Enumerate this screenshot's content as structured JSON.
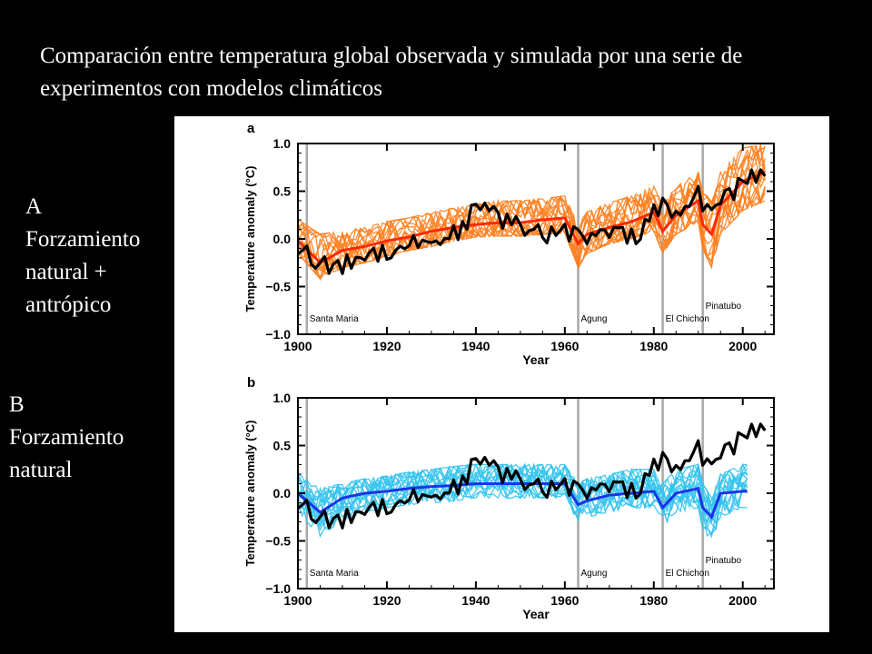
{
  "slide": {
    "title": "Comparación entre temperatura global observada y simulada por una serie de experimentos con modelos climáticos",
    "label_a": {
      "letter": "A",
      "text": "Forzamiento natural + antrópico"
    },
    "label_b": {
      "letter": "B",
      "text": "Forzamiento natural"
    }
  },
  "colors": {
    "observed": "#000000",
    "panel_a_members": "#ff7f1e",
    "panel_a_mean": "#ff2a00",
    "panel_b_members": "#33c3ee",
    "panel_b_mean": "#1a35e6",
    "eruption_lines": "#a9a9a9"
  },
  "chart_data": [
    {
      "type": "line",
      "panel_letter": "a",
      "xlabel": "Year",
      "ylabel": "Temperature anomaly (°C)",
      "xlim": [
        1900,
        2007
      ],
      "ylim": [
        -1.0,
        1.0
      ],
      "xticks": [
        "1900",
        "1920",
        "1940",
        "1960",
        "1980",
        "2000"
      ],
      "yticks": [
        "1.0",
        "0.5",
        "0.0",
        "−0.5",
        "−1.0"
      ],
      "eruptions": [
        {
          "year": 1902,
          "label": "Santa Maria"
        },
        {
          "year": 1963,
          "label": "Agung"
        },
        {
          "year": 1982,
          "label": "El Chichon"
        },
        {
          "year": 1991,
          "label": "Pinatubo"
        }
      ],
      "x": [
        1900,
        1905,
        1910,
        1915,
        1920,
        1925,
        1930,
        1935,
        1940,
        1945,
        1950,
        1955,
        1960,
        1963,
        1965,
        1970,
        1975,
        1980,
        1982,
        1985,
        1990,
        1991,
        1993,
        1995,
        2000,
        2005
      ],
      "series": [
        {
          "role": "members_low",
          "values": [
            -0.15,
            -0.42,
            -0.3,
            -0.25,
            -0.18,
            -0.12,
            -0.08,
            -0.02,
            0.02,
            0.03,
            0.03,
            0.05,
            0.06,
            -0.3,
            -0.15,
            -0.05,
            0.0,
            0.08,
            -0.15,
            0.05,
            0.18,
            -0.1,
            -0.3,
            0.05,
            0.3,
            0.4
          ]
        },
        {
          "role": "members_high",
          "values": [
            0.2,
            0.05,
            0.08,
            0.12,
            0.18,
            0.22,
            0.28,
            0.32,
            0.36,
            0.4,
            0.4,
            0.42,
            0.45,
            0.15,
            0.28,
            0.38,
            0.45,
            0.55,
            0.35,
            0.55,
            0.7,
            0.5,
            0.4,
            0.7,
            0.95,
            1.0
          ]
        },
        {
          "role": "ensemble_mean",
          "values": [
            -0.02,
            -0.25,
            -0.12,
            -0.08,
            -0.02,
            0.02,
            0.08,
            0.12,
            0.15,
            0.17,
            0.17,
            0.2,
            0.22,
            -0.05,
            0.05,
            0.12,
            0.18,
            0.28,
            0.08,
            0.25,
            0.4,
            0.15,
            0.05,
            0.35,
            0.6,
            0.7
          ]
        },
        {
          "role": "observed",
          "values": [
            -0.05,
            -0.3,
            -0.28,
            -0.15,
            -0.12,
            -0.05,
            -0.02,
            0.05,
            0.3,
            0.25,
            0.1,
            0.05,
            0.1,
            0.05,
            -0.05,
            0.08,
            0.0,
            0.25,
            0.35,
            0.2,
            0.45,
            0.4,
            0.25,
            0.45,
            0.55,
            0.75
          ]
        }
      ]
    },
    {
      "type": "line",
      "panel_letter": "b",
      "xlabel": "Year",
      "ylabel": "Temperature anomaly (°C)",
      "xlim": [
        1900,
        2007
      ],
      "ylim": [
        -1.0,
        1.0
      ],
      "xticks": [
        "1900",
        "1920",
        "1940",
        "1960",
        "1980",
        "2000"
      ],
      "yticks": [
        "1.0",
        "0.5",
        "0.0",
        "−0.5",
        "−1.0"
      ],
      "eruptions": [
        {
          "year": 1902,
          "label": "Santa Maria"
        },
        {
          "year": 1963,
          "label": "Agung"
        },
        {
          "year": 1982,
          "label": "El Chichon"
        },
        {
          "year": 1991,
          "label": "Pinatubo"
        }
      ],
      "x": [
        1900,
        1905,
        1910,
        1915,
        1920,
        1925,
        1930,
        1935,
        1940,
        1945,
        1950,
        1955,
        1960,
        1963,
        1965,
        1970,
        1975,
        1980,
        1982,
        1985,
        1990,
        1991,
        1993,
        1995,
        2000,
        2001
      ],
      "series": [
        {
          "role": "members_low",
          "values": [
            -0.2,
            -0.45,
            -0.28,
            -0.2,
            -0.15,
            -0.12,
            -0.1,
            -0.08,
            -0.05,
            -0.05,
            -0.05,
            -0.05,
            -0.05,
            -0.3,
            -0.25,
            -0.2,
            -0.15,
            -0.15,
            -0.35,
            -0.2,
            -0.15,
            -0.4,
            -0.5,
            -0.25,
            -0.15,
            -0.15
          ]
        },
        {
          "role": "members_high",
          "values": [
            0.2,
            0.05,
            0.1,
            0.15,
            0.18,
            0.22,
            0.25,
            0.28,
            0.3,
            0.3,
            0.3,
            0.3,
            0.3,
            0.1,
            0.15,
            0.2,
            0.25,
            0.25,
            0.1,
            0.25,
            0.3,
            0.1,
            -0.05,
            0.2,
            0.3,
            0.3
          ]
        },
        {
          "role": "ensemble_mean",
          "values": [
            0.0,
            -0.2,
            -0.05,
            0.0,
            0.02,
            0.05,
            0.07,
            0.08,
            0.1,
            0.1,
            0.1,
            0.1,
            0.1,
            -0.12,
            -0.08,
            -0.02,
            0.0,
            0.02,
            -0.15,
            0.0,
            0.05,
            -0.15,
            -0.25,
            0.0,
            0.02,
            0.02
          ]
        },
        {
          "role": "observed",
          "values": [
            -0.05,
            -0.3,
            -0.28,
            -0.15,
            -0.12,
            -0.05,
            -0.02,
            0.05,
            0.3,
            0.25,
            0.1,
            0.05,
            0.1,
            0.05,
            -0.05,
            0.08,
            0.0,
            0.25,
            0.35,
            0.2,
            0.45,
            0.4,
            0.25,
            0.45,
            0.55,
            0.75
          ]
        }
      ]
    }
  ]
}
